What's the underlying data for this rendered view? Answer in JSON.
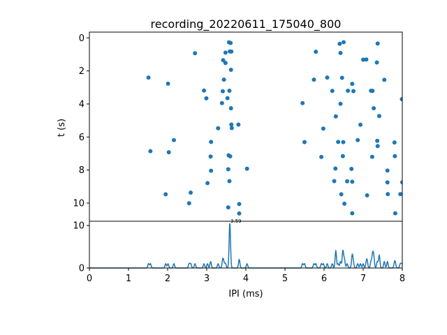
{
  "chart_data": [
    {
      "type": "scatter",
      "title": "recording_20220611_175040_800",
      "xlabel": "",
      "ylabel": "t (s)",
      "xlim": [
        0,
        8
      ],
      "ylim": [
        11.1,
        -0.35
      ],
      "y_inverted": true,
      "yticks": [
        0,
        2,
        4,
        6,
        8,
        10
      ],
      "ytick_labels": [
        "0",
        "2",
        "4",
        "6",
        "8",
        "10"
      ],
      "grid": false,
      "color": "#1f77b4",
      "points": [
        [
          1.51,
          2.4
        ],
        [
          1.56,
          6.86
        ],
        [
          1.95,
          9.47
        ],
        [
          2.01,
          2.77
        ],
        [
          2.03,
          6.92
        ],
        [
          2.16,
          6.19
        ],
        [
          2.55,
          10.01
        ],
        [
          2.59,
          9.37
        ],
        [
          2.7,
          0.93
        ],
        [
          2.93,
          3.19
        ],
        [
          2.99,
          3.66
        ],
        [
          3.02,
          8.79
        ],
        [
          3.1,
          7.18
        ],
        [
          3.11,
          6.3
        ],
        [
          3.11,
          8.04
        ],
        [
          3.29,
          5.47
        ],
        [
          3.39,
          3.95
        ],
        [
          3.41,
          3.23
        ],
        [
          3.42,
          1.35
        ],
        [
          3.44,
          2.53
        ],
        [
          3.48,
          0.89
        ],
        [
          3.48,
          1.52
        ],
        [
          3.53,
          3.65
        ],
        [
          3.55,
          7.95
        ],
        [
          3.55,
          10.26
        ],
        [
          3.56,
          7.11
        ],
        [
          3.57,
          0.27
        ],
        [
          3.58,
          8.67
        ],
        [
          3.58,
          3.2
        ],
        [
          3.59,
          0.82
        ],
        [
          3.6,
          7.17
        ],
        [
          3.61,
          0.31
        ],
        [
          3.62,
          1.93
        ],
        [
          3.62,
          4.26
        ],
        [
          3.63,
          5.25
        ],
        [
          3.63,
          0.83
        ],
        [
          3.64,
          5.46
        ],
        [
          3.81,
          5.25
        ],
        [
          3.83,
          10.63
        ],
        [
          3.83,
          10.06
        ],
        [
          4.03,
          7.92
        ],
        [
          5.45,
          3.95
        ],
        [
          5.5,
          6.31
        ],
        [
          5.74,
          2.53
        ],
        [
          5.79,
          0.84
        ],
        [
          5.93,
          7.21
        ],
        [
          5.98,
          5.49
        ],
        [
          6.08,
          2.4
        ],
        [
          6.21,
          3.21
        ],
        [
          6.26,
          8.67
        ],
        [
          6.29,
          7.91
        ],
        [
          6.3,
          4.75
        ],
        [
          6.36,
          6.3
        ],
        [
          6.4,
          0.36
        ],
        [
          6.42,
          0.91
        ],
        [
          6.42,
          3.99
        ],
        [
          6.44,
          9.47
        ],
        [
          6.46,
          2.42
        ],
        [
          6.48,
          7.16
        ],
        [
          6.49,
          6.31
        ],
        [
          6.5,
          0.26
        ],
        [
          6.52,
          10.04
        ],
        [
          6.59,
          8.68
        ],
        [
          6.61,
          3.2
        ],
        [
          6.7,
          7.93
        ],
        [
          6.72,
          2.78
        ],
        [
          6.72,
          10.62
        ],
        [
          6.72,
          8.71
        ],
        [
          6.75,
          3.22
        ],
        [
          6.86,
          6.19
        ],
        [
          6.93,
          5.26
        ],
        [
          7.0,
          1.32
        ],
        [
          7.08,
          1.31
        ],
        [
          7.1,
          9.53
        ],
        [
          7.2,
          3.2
        ],
        [
          7.23,
          7.2
        ],
        [
          7.24,
          3.21
        ],
        [
          7.27,
          4.26
        ],
        [
          7.35,
          1.49
        ],
        [
          7.36,
          6.23
        ],
        [
          7.37,
          0.34
        ],
        [
          7.37,
          6.55
        ],
        [
          7.41,
          4.73
        ],
        [
          7.54,
          2.54
        ],
        [
          7.62,
          8.75
        ],
        [
          7.62,
          8.03
        ],
        [
          7.63,
          9.46
        ],
        [
          7.8,
          6.33
        ],
        [
          7.81,
          7.16
        ],
        [
          7.82,
          10.62
        ],
        [
          7.95,
          9.46
        ],
        [
          7.99,
          3.71
        ],
        [
          8.0,
          8.74
        ]
      ]
    },
    {
      "type": "line",
      "title": "",
      "xlabel": "IPI (ms)",
      "ylabel": "",
      "xlim": [
        0,
        8
      ],
      "ylim": [
        0,
        11
      ],
      "xticks": [
        0,
        1,
        2,
        3,
        4,
        5,
        6,
        7,
        8
      ],
      "xtick_labels": [
        "0",
        "1",
        "2",
        "3",
        "4",
        "5",
        "6",
        "7",
        "8"
      ],
      "yticks": [
        0,
        10
      ],
      "ytick_labels": [
        "0",
        "10"
      ],
      "grid": false,
      "color": "#1f77b4",
      "peak_annotation": {
        "x": 3.59,
        "y": 10.5,
        "label": "3.59"
      },
      "peaks": [
        [
          1.51,
          1.0
        ],
        [
          1.56,
          1.0
        ],
        [
          1.95,
          1.0
        ],
        [
          2.01,
          1.0
        ],
        [
          2.16,
          1.0
        ],
        [
          2.55,
          1.0
        ],
        [
          2.59,
          1.0
        ],
        [
          2.7,
          1.0
        ],
        [
          2.93,
          1.0
        ],
        [
          3.02,
          1.0
        ],
        [
          3.1,
          1.5
        ],
        [
          3.29,
          1.0
        ],
        [
          3.41,
          2.0
        ],
        [
          3.44,
          1.0
        ],
        [
          3.48,
          1.0
        ],
        [
          3.59,
          10.5
        ],
        [
          3.83,
          2.0
        ],
        [
          4.03,
          1.0
        ],
        [
          5.45,
          1.0
        ],
        [
          5.5,
          1.0
        ],
        [
          5.74,
          1.0
        ],
        [
          5.79,
          1.0
        ],
        [
          5.93,
          1.0
        ],
        [
          5.98,
          1.0
        ],
        [
          6.08,
          1.0
        ],
        [
          6.21,
          1.0
        ],
        [
          6.3,
          4.0
        ],
        [
          6.36,
          1.0
        ],
        [
          6.42,
          1.5
        ],
        [
          6.48,
          4.0
        ],
        [
          6.52,
          2.0
        ],
        [
          6.59,
          1.0
        ],
        [
          6.72,
          3.0
        ],
        [
          6.75,
          1.0
        ],
        [
          6.86,
          1.0
        ],
        [
          6.93,
          1.0
        ],
        [
          7.0,
          1.0
        ],
        [
          7.08,
          1.0
        ],
        [
          7.1,
          1.5
        ],
        [
          7.2,
          1.5
        ],
        [
          7.24,
          3.0
        ],
        [
          7.27,
          2.5
        ],
        [
          7.36,
          1.5
        ],
        [
          7.41,
          3.0
        ],
        [
          7.54,
          1.5
        ],
        [
          7.62,
          1.5
        ],
        [
          7.8,
          1.0
        ],
        [
          7.82,
          1.0
        ],
        [
          7.95,
          1.0
        ],
        [
          7.99,
          1.0
        ]
      ]
    }
  ]
}
